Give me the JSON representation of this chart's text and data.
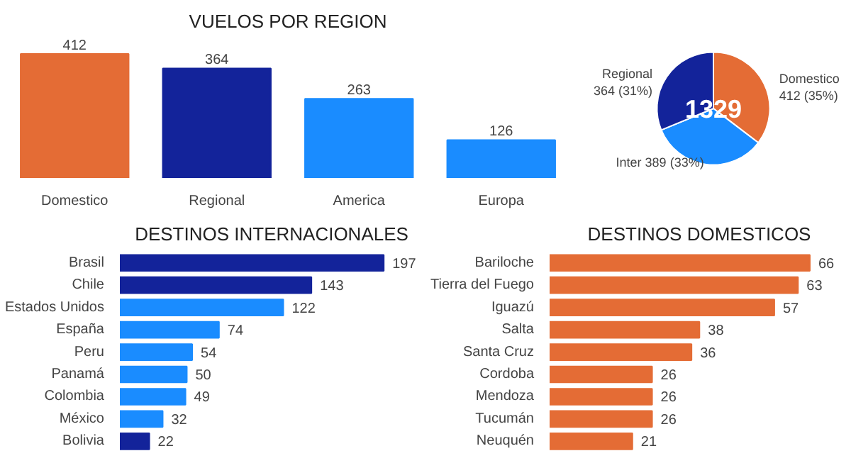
{
  "chart_data": [
    {
      "type": "bar",
      "title": "VUELOS POR REGION",
      "categories": [
        "Domestico",
        "Regional",
        "America",
        "Europa"
      ],
      "values": [
        412,
        364,
        263,
        126
      ],
      "colors": [
        "#e46c35",
        "#13239a",
        "#1a8cff",
        "#1a8cff"
      ],
      "data_labels": true
    },
    {
      "type": "pie",
      "categories": [
        "Domestico",
        "Inter",
        "Regional"
      ],
      "values": [
        412,
        389,
        364
      ],
      "colors": [
        "#e46c35",
        "#1a8cff",
        "#13239a"
      ],
      "value_labels": [
        "412 (35%)",
        "389 (33%)",
        "364 (31%)"
      ],
      "annotations": [
        "1329"
      ]
    },
    {
      "type": "bar",
      "orientation": "horizontal",
      "title": "DESTINOS INTERNACIONALES",
      "categories": [
        "Brasil",
        "Chile",
        "Estados Unidos",
        "España",
        "Peru",
        "Panamá",
        "Colombia",
        "México",
        "Bolivia"
      ],
      "values": [
        197,
        143,
        122,
        74,
        54,
        50,
        49,
        32,
        22
      ],
      "colors": [
        "#13239a",
        "#13239a",
        "#1a8cff",
        "#1a8cff",
        "#1a8cff",
        "#1a8cff",
        "#1a8cff",
        "#1a8cff",
        "#13239a"
      ],
      "data_labels": true
    },
    {
      "type": "bar",
      "orientation": "horizontal",
      "title": "DESTINOS DOMESTICOS",
      "categories": [
        "Bariloche",
        "Tierra del Fuego",
        "Iguazú",
        "Salta",
        "Santa Cruz",
        "Cordoba",
        "Mendoza",
        "Tucumán",
        "Neuquén"
      ],
      "values": [
        66,
        63,
        57,
        38,
        36,
        26,
        26,
        26,
        21
      ],
      "colors": [
        "#e46c35",
        "#e46c35",
        "#e46c35",
        "#e46c35",
        "#e46c35",
        "#e46c35",
        "#e46c35",
        "#e46c35",
        "#e46c35"
      ],
      "data_labels": true
    }
  ]
}
